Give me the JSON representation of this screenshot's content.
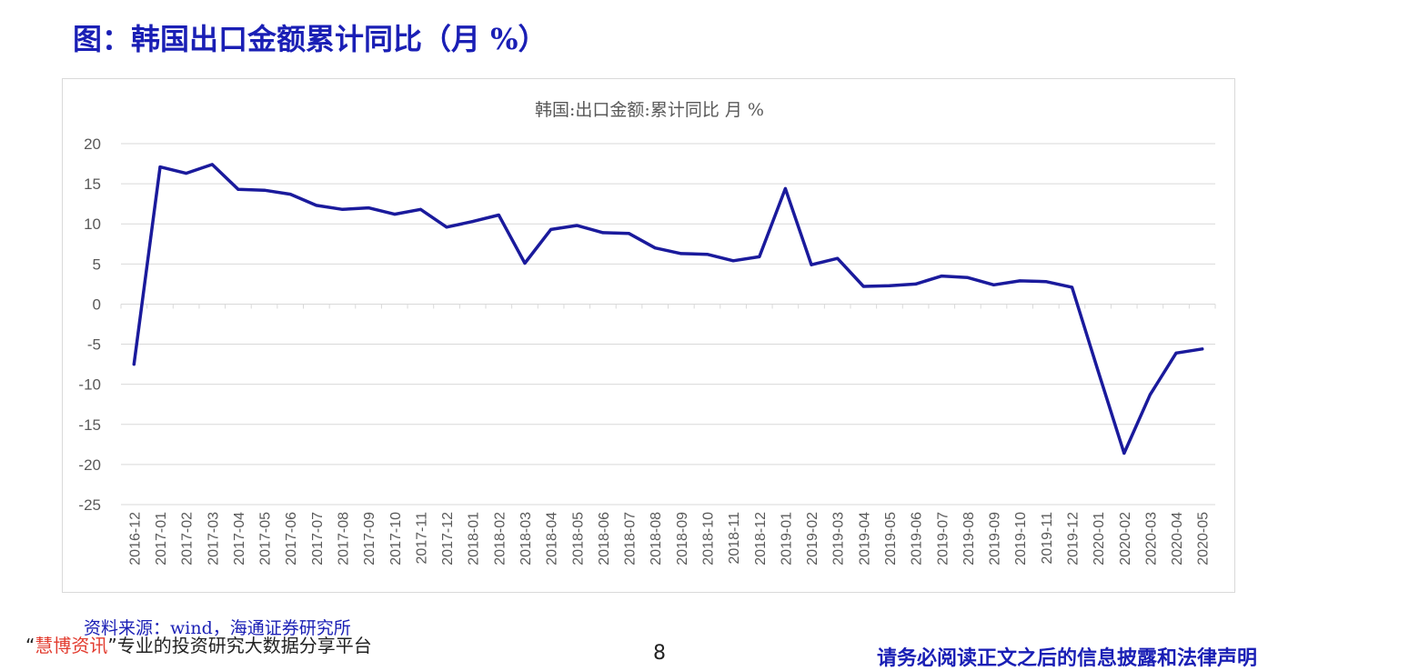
{
  "page_title": "图：韩国出口金额累计同比（月 %）",
  "source_note": "资料来源：wind，海通证券研究所",
  "footer": {
    "brand_quote_open": "“",
    "brand_name": "慧博资讯",
    "brand_quote_close": "”",
    "tagline": "专业的投资研究大数据分享平台",
    "page_number": "8",
    "disclaimer": "请务必阅读正文之后的信息披露和法律声明"
  },
  "colors": {
    "title": "#1a1fb5",
    "series_line": "#1a1a9c",
    "grid": "#d9d9d9",
    "axis_text": "#595959",
    "brand": "#e23b2e"
  },
  "chart_data": {
    "type": "line",
    "title": "韩国:出口金额:累计同比 月 %",
    "xlabel": "",
    "ylabel": "",
    "ylim": [
      -25,
      20
    ],
    "y_ticks": [
      20,
      15,
      10,
      5,
      0,
      -5,
      -10,
      -15,
      -20,
      -25
    ],
    "grid": true,
    "legend": "none",
    "categories": [
      "2016-12",
      "2017-01",
      "2017-02",
      "2017-03",
      "2017-04",
      "2017-05",
      "2017-06",
      "2017-07",
      "2017-08",
      "2017-09",
      "2017-10",
      "2017-11",
      "2017-12",
      "2018-01",
      "2018-02",
      "2018-03",
      "2018-04",
      "2018-05",
      "2018-06",
      "2018-07",
      "2018-08",
      "2018-09",
      "2018-10",
      "2018-11",
      "2018-12",
      "2019-01",
      "2019-02",
      "2019-03",
      "2019-04",
      "2019-05",
      "2019-06",
      "2019-07",
      "2019-08",
      "2019-09",
      "2019-10",
      "2019-11",
      "2019-12",
      "2020-01",
      "2020-02",
      "2020-03",
      "2020-04",
      "2020-05"
    ],
    "series": [
      {
        "values": [
          -7.5,
          17.1,
          16.3,
          17.4,
          14.3,
          14.2,
          13.7,
          12.3,
          11.8,
          12.0,
          11.2,
          11.8,
          9.6,
          10.3,
          11.1,
          5.1,
          9.3,
          9.8,
          8.9,
          8.8,
          7.0,
          6.3,
          6.2,
          5.4,
          5.9,
          14.4,
          4.9,
          5.7,
          2.2,
          2.3,
          2.5,
          3.5,
          3.3,
          2.4,
          2.9,
          2.8,
          2.1,
          -8.3,
          -18.6,
          -11.3,
          -6.1,
          -5.6
        ]
      }
    ]
  }
}
